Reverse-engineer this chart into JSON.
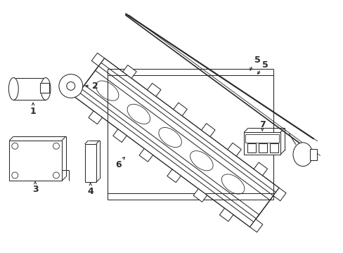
{
  "bg_color": "#ffffff",
  "line_color": "#2a2a2a",
  "figsize": [
    4.89,
    3.6
  ],
  "dpi": 100,
  "lw": 0.75
}
